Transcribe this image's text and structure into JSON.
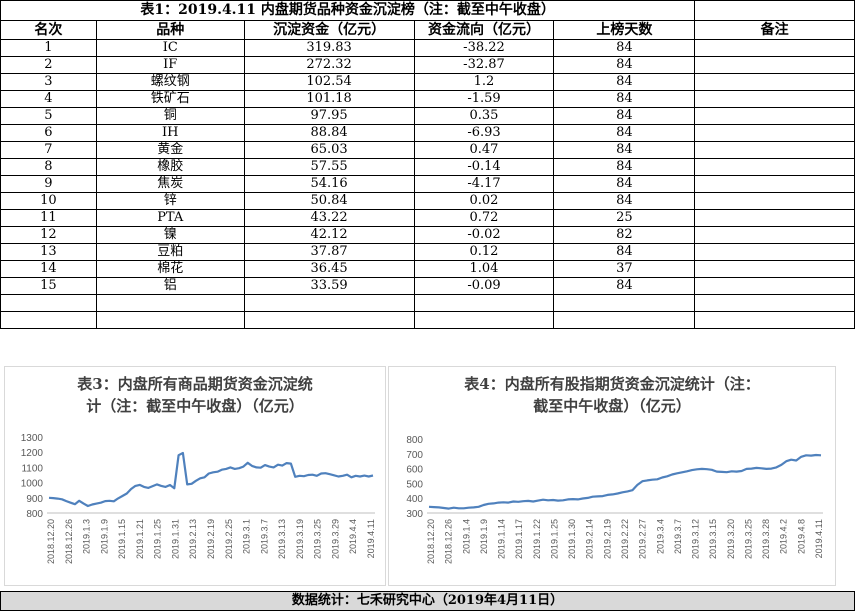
{
  "table": {
    "title": "表1：2019.4.11 内盘期货品种资金沉淀榜（注：截至中午收盘）",
    "headers": [
      "名次",
      "品种",
      "沉淀资金（亿元）",
      "资金流向（亿元）",
      "上榜天数",
      "备注"
    ],
    "rows": [
      [
        "1",
        "IC",
        "319.83",
        "-38.22",
        "84",
        ""
      ],
      [
        "2",
        "IF",
        "272.32",
        "-32.87",
        "84",
        ""
      ],
      [
        "3",
        "螺纹钢",
        "102.54",
        "1.2",
        "84",
        ""
      ],
      [
        "4",
        "铁矿石",
        "101.18",
        "-1.59",
        "84",
        ""
      ],
      [
        "5",
        "铜",
        "97.95",
        "0.35",
        "84",
        ""
      ],
      [
        "6",
        "IH",
        "88.84",
        "-6.93",
        "84",
        ""
      ],
      [
        "7",
        "黄金",
        "65.03",
        "0.47",
        "84",
        ""
      ],
      [
        "8",
        "橡胶",
        "57.55",
        "-0.14",
        "84",
        ""
      ],
      [
        "9",
        "焦炭",
        "54.16",
        "-4.17",
        "84",
        ""
      ],
      [
        "10",
        "锌",
        "50.84",
        "0.02",
        "84",
        ""
      ],
      [
        "11",
        "PTA",
        "43.22",
        "0.72",
        "25",
        ""
      ],
      [
        "12",
        "镍",
        "42.12",
        "-0.02",
        "82",
        ""
      ],
      [
        "13",
        "豆粕",
        "37.87",
        "0.12",
        "84",
        ""
      ],
      [
        "14",
        "棉花",
        "36.45",
        "1.04",
        "37",
        ""
      ],
      [
        "15",
        "铝",
        "33.59",
        "-0.09",
        "84",
        ""
      ],
      [
        "",
        "",
        "",
        "",
        "",
        ""
      ],
      [
        "",
        "",
        "",
        "",
        "",
        ""
      ]
    ]
  },
  "chart_data": [
    {
      "type": "line",
      "title": "表3：内盘所有商品期货资金沉淀统计（注：截至中午收盘）（亿元）",
      "title_lines": [
        "表3：内盘所有商品期货资金沉淀统",
        "计（注：截至中午收盘）（亿元）"
      ],
      "x_tick_labels": [
        "2018.12.20",
        "2018.12.26",
        "2019.1.3",
        "2019.1.9",
        "2019.1.15",
        "2019.1.21",
        "2019.1.25",
        "2019.1.31",
        "2019.2.13",
        "2019.2.19",
        "2019.2.25",
        "2019.3.1",
        "2019.3.7",
        "2019.3.13",
        "2019.3.19",
        "2019.3.25",
        "2019.3.29",
        "2019.4.4",
        "2019.4.11"
      ],
      "yticks": [
        800,
        900,
        1000,
        1100,
        1200,
        1300
      ],
      "ylim": [
        800,
        1300
      ],
      "line_color": "#4f81bd",
      "values": [
        900,
        898,
        895,
        890,
        878,
        868,
        858,
        880,
        862,
        846,
        856,
        862,
        868,
        878,
        880,
        877,
        896,
        912,
        928,
        958,
        978,
        985,
        972,
        965,
        977,
        988,
        978,
        972,
        984,
        963,
        1180,
        1195,
        988,
        992,
        1012,
        1028,
        1035,
        1060,
        1068,
        1072,
        1085,
        1090,
        1100,
        1090,
        1095,
        1105,
        1130,
        1110,
        1100,
        1098,
        1115,
        1105,
        1100,
        1118,
        1112,
        1128,
        1125,
        1038,
        1045,
        1042,
        1050,
        1052,
        1045,
        1060,
        1062,
        1055,
        1048,
        1040,
        1045,
        1052,
        1035,
        1045,
        1040,
        1046,
        1040,
        1047
      ]
    },
    {
      "type": "line",
      "title": "表4：内盘所有股指期货资金沉淀统计（注：截至中午收盘）（亿元）",
      "title_lines": [
        "表4：内盘所有股指期货资金沉淀统计（注：",
        "截至中午收盘）（亿元）"
      ],
      "x_tick_labels": [
        "2018.12.20",
        "2018.12.26",
        "2019.1.4",
        "2019.1.9",
        "2019.1.14",
        "2019.1.17",
        "2019.1.22",
        "2019.1.25",
        "2019.1.30",
        "2019.2.14",
        "2019.2.19",
        "2019.2.22",
        "2019.2.27",
        "2019.3.4",
        "2019.3.7",
        "2019.3.12",
        "2019.3.15",
        "2019.3.20",
        "2019.3.25",
        "2019.3.28",
        "2019.4.2",
        "2019.4.8",
        "2019.4.11"
      ],
      "yticks": [
        300,
        400,
        500,
        600,
        700,
        800
      ],
      "ylim": [
        300,
        800
      ],
      "line_color": "#4f81bd",
      "values": [
        342,
        340,
        338,
        334,
        330,
        336,
        332,
        332,
        336,
        338,
        342,
        354,
        362,
        365,
        370,
        372,
        370,
        378,
        376,
        380,
        382,
        378,
        384,
        390,
        386,
        388,
        384,
        386,
        392,
        394,
        392,
        398,
        402,
        410,
        412,
        414,
        422,
        426,
        432,
        440,
        446,
        454,
        490,
        515,
        520,
        525,
        528,
        540,
        548,
        560,
        568,
        575,
        582,
        590,
        595,
        598,
        596,
        592,
        580,
        578,
        576,
        582,
        580,
        584,
        598,
        600,
        605,
        602,
        598,
        600,
        608,
        625,
        650,
        660,
        655,
        680,
        690,
        688,
        692,
        690
      ]
    }
  ],
  "footer": {
    "text": "数据统计：七禾研究中心（2019年4月11日）"
  }
}
